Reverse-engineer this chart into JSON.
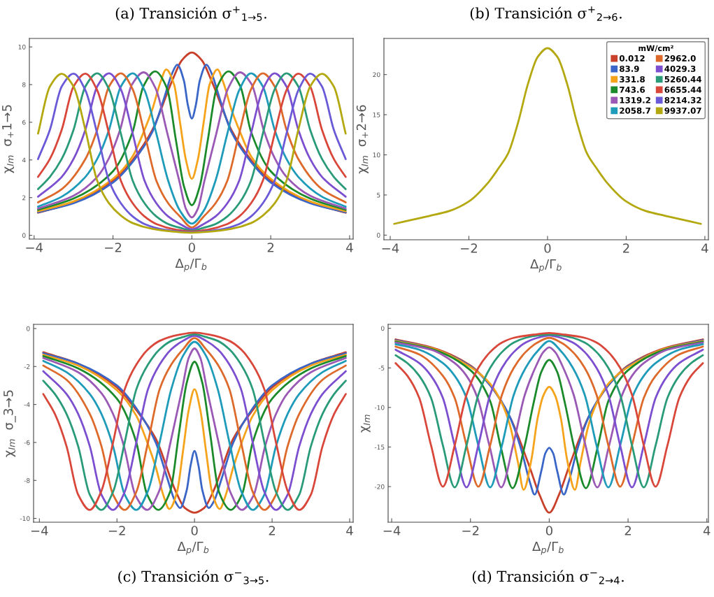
{
  "chart_data": [
    {
      "type": "line",
      "title": "(a) Transición σ$^{+}$$_{1→5}$.",
      "xlabel": "Δ$_{p}$/Γ$_{b}$",
      "ylabel": "χ$_{Im}$  σ$_{+}$1→5",
      "xlim": [
        -4.12,
        4.09
      ],
      "ylim": [
        -0.2,
        10.45
      ],
      "xticks": [
        -4,
        -2,
        0,
        2,
        4
      ],
      "yticks": [
        0,
        2,
        4,
        6,
        8,
        10
      ],
      "series": [
        {
          "color": "#c8402a",
          "x": [
            -3.9,
            -3,
            -2,
            -1.5,
            -1,
            -0.5,
            -0.25,
            0,
            0.25,
            0.5,
            1,
            1.5,
            2,
            3,
            3.9
          ],
          "values": [
            1.2,
            1.75,
            2.9,
            4.0,
            5.6,
            8.2,
            9.3,
            9.7,
            9.3,
            8.2,
            5.6,
            4.0,
            2.9,
            1.75,
            1.2
          ]
        },
        {
          "color": "#3a66c8",
          "x": [
            -3.9,
            -3,
            -2,
            -1.5,
            -1,
            -0.7,
            -0.5,
            -0.37,
            -0.2,
            -0.1,
            0,
            0.1,
            0.2,
            0.37,
            0.5,
            0.7,
            1,
            1.5,
            2,
            3,
            3.9
          ],
          "values": [
            1.22,
            1.7,
            2.8,
            3.9,
            5.5,
            7.3,
            8.6,
            9.05,
            8.2,
            6.9,
            6.2,
            6.9,
            8.2,
            9.05,
            8.6,
            7.3,
            5.5,
            3.9,
            2.8,
            1.7,
            1.22
          ]
        },
        {
          "color": "#f5a31a",
          "x": [
            -3.9,
            -3,
            -2,
            -1.5,
            -1.2,
            -1,
            -0.8,
            -0.65,
            -0.45,
            -0.3,
            -0.15,
            0,
            0.15,
            0.3,
            0.45,
            0.65,
            0.8,
            1,
            1.2,
            1.5,
            2,
            3,
            3.9
          ],
          "values": [
            1.28,
            1.8,
            3.0,
            4.2,
            5.6,
            6.7,
            8.1,
            8.8,
            8.0,
            6.0,
            4.0,
            3.0,
            4.0,
            6.0,
            8.0,
            8.8,
            8.1,
            6.7,
            5.6,
            4.2,
            3.0,
            1.8,
            1.28
          ]
        },
        {
          "color": "#1a8a2a",
          "x": [
            -3.9,
            -3,
            -2,
            -1.5,
            -1.23,
            -0.93,
            -0.63,
            -0.4,
            -0.2,
            0,
            0.2,
            0.4,
            0.63,
            0.93,
            1.23,
            1.5,
            2,
            3,
            3.9
          ],
          "values": [
            1.35,
            1.95,
            3.4,
            5.5,
            7.9,
            8.7,
            7.8,
            5.0,
            2.6,
            1.6,
            2.6,
            5.0,
            7.8,
            8.7,
            7.9,
            5.5,
            3.4,
            1.95,
            1.35
          ]
        },
        {
          "color": "#9b59b6",
          "x": [
            -3.9,
            -3,
            -2.4,
            -2.1,
            -1.82,
            -1.52,
            -1.22,
            -0.92,
            -0.62,
            -0.32,
            -0.15,
            0,
            0.15,
            0.32,
            0.62,
            0.92,
            1.22,
            1.52,
            1.82,
            2.1,
            2.4,
            3,
            3.9
          ],
          "values": [
            1.42,
            2.1,
            3.1,
            4.1,
            5.6,
            8.0,
            8.65,
            7.8,
            5.4,
            2.9,
            1.4,
            0.95,
            1.4,
            2.9,
            5.4,
            7.8,
            8.65,
            8.0,
            5.6,
            4.1,
            3.1,
            2.1,
            1.42
          ]
        },
        {
          "color": "#1f9bba",
          "x": [
            -3.9,
            -3.3,
            -2.7,
            -2.4,
            -2.1,
            -1.8,
            -1.5,
            -1.2,
            -0.9,
            -0.6,
            -0.3,
            0,
            0.3,
            0.6,
            0.9,
            1.2,
            1.5,
            1.8,
            2.1,
            2.4,
            2.7,
            3.3,
            3.9
          ],
          "values": [
            1.52,
            2.05,
            3.1,
            4.05,
            5.6,
            7.9,
            8.6,
            7.7,
            5.4,
            2.9,
            1.3,
            0.62,
            1.3,
            2.9,
            5.4,
            7.7,
            8.6,
            7.9,
            5.6,
            4.05,
            3.1,
            2.05,
            1.52
          ]
        },
        {
          "color": "#dd6a2a",
          "x": [
            -3.9,
            -3.3,
            -2.7,
            -2.4,
            -2.1,
            -1.8,
            -1.5,
            -1.2,
            -0.9,
            -0.6,
            -0.3,
            0,
            0.3,
            0.6,
            0.9,
            1.2,
            1.5,
            1.8,
            2.1,
            2.4,
            2.7,
            3.3,
            3.9
          ],
          "values": [
            1.75,
            2.45,
            4.05,
            5.6,
            7.9,
            8.6,
            7.75,
            5.4,
            2.9,
            1.7,
            1.0,
            0.42,
            1.0,
            1.7,
            2.9,
            5.4,
            7.75,
            8.6,
            7.9,
            5.6,
            4.05,
            2.45,
            1.75
          ]
        },
        {
          "color": "#7b4fcf",
          "x": [
            -3.9,
            -3.3,
            -3,
            -2.7,
            -2.4,
            -2.1,
            -1.8,
            -1.5,
            -1.2,
            -0.9,
            -0.6,
            -0.3,
            0,
            0.3,
            0.6,
            0.9,
            1.2,
            1.5,
            1.8,
            2.1,
            2.4,
            2.7,
            3,
            3.3,
            3.9
          ],
          "values": [
            2.05,
            3.1,
            4.05,
            5.6,
            7.9,
            8.6,
            7.75,
            5.4,
            2.9,
            1.7,
            1.0,
            0.6,
            0.32,
            0.6,
            1.0,
            1.7,
            2.9,
            5.4,
            7.75,
            8.6,
            7.9,
            5.6,
            4.05,
            3.1,
            2.05
          ]
        },
        {
          "color": "#2a9b78",
          "x": [
            -3.9,
            -3.6,
            -3.3,
            -3,
            -2.7,
            -2.4,
            -2.1,
            -1.8,
            -1.5,
            -1.2,
            -0.9,
            -0.6,
            -0.3,
            0,
            0.3,
            0.6,
            0.9,
            1.2,
            1.5,
            1.8,
            2.1,
            2.4,
            2.7,
            3,
            3.3,
            3.6,
            3.9
          ],
          "values": [
            2.45,
            3.1,
            4.05,
            5.6,
            7.9,
            8.6,
            7.75,
            5.4,
            2.9,
            1.7,
            1.0,
            0.6,
            0.4,
            0.25,
            0.4,
            0.6,
            1.0,
            1.7,
            2.9,
            5.4,
            7.75,
            8.6,
            7.9,
            5.6,
            4.05,
            3.1,
            2.45
          ]
        },
        {
          "color": "#d9473b",
          "x": [
            -3.9,
            -3.6,
            -3.3,
            -3,
            -2.7,
            -2.4,
            -2.1,
            -1.8,
            -1.5,
            -1.2,
            -0.9,
            -0.4,
            0,
            0.4,
            0.9,
            1.2,
            1.5,
            1.8,
            2.1,
            2.4,
            2.7,
            3,
            3.3,
            3.6,
            3.9
          ],
          "values": [
            3.1,
            4.05,
            5.6,
            7.9,
            8.58,
            7.7,
            5.4,
            2.9,
            1.7,
            1.0,
            0.6,
            0.3,
            0.2,
            0.3,
            0.6,
            1.0,
            1.7,
            2.9,
            5.4,
            7.7,
            8.58,
            7.9,
            5.6,
            4.05,
            3.1
          ]
        },
        {
          "color": "#6a5ad8",
          "x": [
            -3.9,
            -3.6,
            -3.3,
            -3,
            -2.7,
            -2.4,
            -2.1,
            -1.8,
            -1.5,
            -1.2,
            -0.7,
            0,
            0.7,
            1.2,
            1.5,
            1.8,
            2.1,
            2.4,
            2.7,
            3,
            3.3,
            3.6,
            3.9
          ],
          "values": [
            4.05,
            5.6,
            7.9,
            8.58,
            7.7,
            5.4,
            2.9,
            1.7,
            1.0,
            0.6,
            0.3,
            0.17,
            0.3,
            0.6,
            1.0,
            1.7,
            2.9,
            5.4,
            7.7,
            8.58,
            7.9,
            5.6,
            4.05
          ]
        },
        {
          "color": "#b3a810",
          "x": [
            -3.9,
            -3.6,
            -3.3,
            -3,
            -2.7,
            -2.4,
            -2.1,
            -1.8,
            -1.5,
            -1,
            -0.5,
            0,
            0.5,
            1,
            1.5,
            1.8,
            2.1,
            2.4,
            2.7,
            3,
            3.3,
            3.6,
            3.9
          ],
          "values": [
            5.4,
            7.9,
            8.57,
            7.9,
            5.6,
            2.9,
            1.7,
            1.05,
            0.65,
            0.34,
            0.2,
            0.14,
            0.2,
            0.34,
            0.65,
            1.05,
            1.7,
            2.9,
            5.6,
            7.9,
            8.57,
            7.9,
            5.4
          ]
        }
      ]
    },
    {
      "type": "line",
      "title": "(b) Transición σ$^{+}$$_{2→6}$.",
      "xlabel": "Δ$_{p}$/Γ$_{b}$",
      "ylabel": "χ$_{Im}$  σ$_{+}$2→6",
      "xlim": [
        -4.16,
        4.09
      ],
      "ylim": [
        -0.58,
        24.5
      ],
      "xticks": [
        -4,
        -2,
        0,
        2,
        4
      ],
      "yticks": [
        0,
        5,
        10,
        15,
        20
      ],
      "legend": "top right",
      "legend_title": "mW/cm²",
      "series": [
        {
          "name": "0.012",
          "color": "#c8402a"
        },
        {
          "name": "83.9",
          "color": "#3a66c8"
        },
        {
          "name": "331.8",
          "color": "#f5a31a"
        },
        {
          "name": "743.6",
          "color": "#1a8a2a"
        },
        {
          "name": "1319.2",
          "color": "#9b59b6"
        },
        {
          "name": "2058.7",
          "color": "#1f9bba"
        },
        {
          "name": "2962.0",
          "color": "#dd6a2a"
        },
        {
          "name": "4029.3",
          "color": "#7b4fcf"
        },
        {
          "name": "5260.44",
          "color": "#2a9b78"
        },
        {
          "name": "6655.44",
          "color": "#d9473b"
        },
        {
          "name": "8214.32",
          "color": "#6a5ad8"
        },
        {
          "name": "9937.07",
          "color": "#b3a810",
          "x": [
            -3.9,
            -3,
            -2.5,
            -2,
            -1.5,
            -1.25,
            -1,
            -0.75,
            -0.5,
            -0.25,
            0,
            0.25,
            0.5,
            0.75,
            1,
            1.25,
            1.5,
            2,
            2.5,
            3,
            3.9
          ],
          "values": [
            1.4,
            2.4,
            3.0,
            4.2,
            6.6,
            8.3,
            10.2,
            14,
            18.8,
            22.2,
            23.3,
            22.2,
            18.8,
            14,
            10.2,
            8.3,
            6.6,
            4.2,
            3.0,
            2.4,
            1.4
          ]
        }
      ]
    },
    {
      "type": "line",
      "title": "(c) Transición σ$^{−}$$_{3→5}$.",
      "xlabel": "Δ$_{p}$/Γ$_{b}$",
      "ylabel": "χ$_{Im}$  σ_3→5",
      "xlim": [
        -4.15,
        4.09
      ],
      "ylim": [
        -10.2,
        0.22
      ],
      "xticks": [
        -4,
        -2,
        0,
        2,
        4
      ],
      "yticks": [
        0,
        -2,
        -4,
        -6,
        -8,
        -10
      ],
      "series": [
        {
          "color": "#c8402a",
          "x": [
            -3.9,
            -3,
            -2,
            -1.5,
            -1,
            -0.5,
            -0.25,
            0,
            0.25,
            0.5,
            1,
            1.5,
            2,
            3,
            3.9
          ],
          "values": [
            -1.25,
            -1.85,
            -3.1,
            -4.3,
            -5.8,
            -8.5,
            -9.45,
            -9.7,
            -9.45,
            -8.5,
            -5.8,
            -4.3,
            -3.1,
            -1.85,
            -1.25
          ]
        },
        {
          "color": "#3a66c8",
          "x": [
            -3.9,
            -3,
            -2,
            -1.5,
            -1,
            -0.7,
            -0.5,
            -0.37,
            -0.2,
            -0.1,
            0,
            0.1,
            0.2,
            0.37,
            0.5,
            0.7,
            1,
            1.5,
            2,
            3,
            3.9
          ],
          "values": [
            -1.3,
            -1.85,
            -3.0,
            -4.2,
            -6.0,
            -7.9,
            -9.1,
            -9.45,
            -8.5,
            -7.2,
            -6.45,
            -7.2,
            -8.5,
            -9.45,
            -9.1,
            -7.9,
            -6.0,
            -4.2,
            -3.0,
            -1.85,
            -1.3
          ]
        },
        {
          "color": "#f5a31a",
          "x": [
            -3.9,
            -3,
            -2,
            -1.5,
            -1.2,
            -1,
            -0.8,
            -0.65,
            -0.45,
            -0.3,
            -0.15,
            0,
            0.15,
            0.3,
            0.45,
            0.65,
            0.8,
            1,
            1.2,
            1.5,
            2,
            3,
            3.9
          ],
          "values": [
            -1.38,
            -1.95,
            -3.25,
            -4.6,
            -6.1,
            -7.3,
            -8.8,
            -9.5,
            -8.6,
            -6.5,
            -4.3,
            -3.2,
            -4.3,
            -6.5,
            -8.6,
            -9.5,
            -8.8,
            -7.3,
            -6.1,
            -4.6,
            -3.25,
            -1.95,
            -1.38
          ]
        },
        {
          "color": "#1a8a2a",
          "x": [
            -3.9,
            -3,
            -2,
            -1.5,
            -1.23,
            -0.93,
            -0.63,
            -0.4,
            -0.2,
            0,
            0.2,
            0.4,
            0.63,
            0.93,
            1.23,
            1.5,
            2,
            3,
            3.9
          ],
          "values": [
            -1.45,
            -2.1,
            -3.7,
            -6.0,
            -8.7,
            -9.55,
            -8.6,
            -5.5,
            -2.85,
            -1.75,
            -2.85,
            -5.5,
            -8.6,
            -9.55,
            -8.7,
            -6.0,
            -3.7,
            -2.1,
            -1.45
          ]
        },
        {
          "color": "#9b59b6",
          "x": [
            -3.9,
            -3,
            -2.4,
            -2.1,
            -1.82,
            -1.52,
            -1.22,
            -0.92,
            -0.62,
            -0.32,
            -0.15,
            0,
            0.15,
            0.32,
            0.62,
            0.92,
            1.22,
            1.52,
            1.82,
            2.1,
            2.4,
            3,
            3.9
          ],
          "values": [
            -1.55,
            -2.3,
            -3.4,
            -4.5,
            -6.2,
            -8.8,
            -9.55,
            -8.6,
            -6.0,
            -3.2,
            -1.55,
            -1.05,
            -1.55,
            -3.2,
            -6.0,
            -8.6,
            -9.55,
            -8.8,
            -6.2,
            -4.5,
            -3.4,
            -2.3,
            -1.55
          ]
        },
        {
          "color": "#1f9bba",
          "x": [
            -3.9,
            -3.3,
            -2.7,
            -2.4,
            -2.1,
            -1.8,
            -1.5,
            -1.2,
            -0.9,
            -0.6,
            -0.3,
            0,
            0.3,
            0.6,
            0.9,
            1.2,
            1.5,
            1.8,
            2.1,
            2.4,
            2.7,
            3.3,
            3.9
          ],
          "values": [
            -1.7,
            -2.3,
            -3.45,
            -4.5,
            -6.2,
            -8.75,
            -9.55,
            -8.55,
            -6.0,
            -3.2,
            -1.45,
            -0.7,
            -1.45,
            -3.2,
            -6.0,
            -8.55,
            -9.55,
            -8.75,
            -6.2,
            -4.5,
            -3.45,
            -2.3,
            -1.7
          ]
        },
        {
          "color": "#dd6a2a",
          "x": [
            -3.9,
            -3.3,
            -2.7,
            -2.4,
            -2.1,
            -1.8,
            -1.5,
            -1.2,
            -0.9,
            -0.6,
            -0.3,
            0,
            0.3,
            0.6,
            0.9,
            1.2,
            1.5,
            1.8,
            2.1,
            2.4,
            2.7,
            3.3,
            3.9
          ],
          "values": [
            -1.95,
            -2.7,
            -4.5,
            -6.2,
            -8.75,
            -9.55,
            -8.6,
            -6.0,
            -3.2,
            -1.9,
            -1.1,
            -0.5,
            -1.1,
            -1.9,
            -3.2,
            -6.0,
            -8.6,
            -9.55,
            -8.75,
            -6.2,
            -4.5,
            -2.7,
            -1.95
          ]
        },
        {
          "color": "#7b4fcf",
          "x": [
            -3.9,
            -3.3,
            -3,
            -2.7,
            -2.4,
            -2.1,
            -1.8,
            -1.5,
            -1.2,
            -0.9,
            -0.6,
            -0.3,
            0,
            0.3,
            0.6,
            0.9,
            1.2,
            1.5,
            1.8,
            2.1,
            2.4,
            2.7,
            3,
            3.3,
            3.9
          ],
          "values": [
            -2.25,
            -3.45,
            -4.5,
            -6.2,
            -8.75,
            -9.55,
            -8.6,
            -6.0,
            -3.2,
            -1.9,
            -1.1,
            -0.65,
            -0.38,
            -0.65,
            -1.1,
            -1.9,
            -3.2,
            -6.0,
            -8.6,
            -9.55,
            -8.75,
            -6.2,
            -4.5,
            -3.45,
            -2.25
          ]
        },
        {
          "color": "#2a9b78",
          "x": [
            -3.9,
            -3.6,
            -3.3,
            -3,
            -2.7,
            -2.4,
            -2.1,
            -1.8,
            -1.5,
            -1.2,
            -0.9,
            -0.6,
            -0.3,
            0,
            0.3,
            0.6,
            0.9,
            1.2,
            1.5,
            1.8,
            2.1,
            2.4,
            2.7,
            3,
            3.3,
            3.6,
            3.9
          ],
          "values": [
            -2.75,
            -3.45,
            -4.5,
            -6.2,
            -8.75,
            -9.55,
            -8.6,
            -6.0,
            -3.2,
            -1.9,
            -1.1,
            -0.65,
            -0.45,
            -0.3,
            -0.45,
            -0.65,
            -1.1,
            -1.9,
            -3.2,
            -6.0,
            -8.6,
            -9.55,
            -8.75,
            -6.2,
            -4.5,
            -3.45,
            -2.75
          ]
        },
        {
          "color": "#d9473b",
          "x": [
            -3.9,
            -3.6,
            -3.3,
            -3,
            -2.7,
            -2.4,
            -2.1,
            -1.8,
            -1.5,
            -1.2,
            -0.9,
            -0.4,
            0,
            0.4,
            0.9,
            1.2,
            1.5,
            1.8,
            2.1,
            2.4,
            2.7,
            3,
            3.3,
            3.6,
            3.9
          ],
          "values": [
            -3.45,
            -4.5,
            -6.2,
            -8.75,
            -9.55,
            -8.55,
            -6.0,
            -3.2,
            -1.9,
            -1.1,
            -0.65,
            -0.33,
            -0.22,
            -0.33,
            -0.65,
            -1.1,
            -1.9,
            -3.2,
            -6.0,
            -8.55,
            -9.55,
            -8.75,
            -6.2,
            -4.5,
            -3.45
          ]
        }
      ]
    },
    {
      "type": "line",
      "title": "(d) Transición σ$^{−}$$_{2→4}$.",
      "xlabel": "Δ$_{p}$/Γ$_{b}$",
      "ylabel": "χ$_{Im}$",
      "xlim": [
        -4.09,
        4.04
      ],
      "ylim": [
        -24.5,
        0.5
      ],
      "xticks": [
        -4,
        -2,
        0,
        2,
        4
      ],
      "yticks": [
        0,
        -5,
        -10,
        -15,
        -20
      ],
      "series": [
        {
          "color": "#c8402a",
          "x": [
            -3.9,
            -3,
            -2,
            -1.5,
            -1,
            -0.5,
            -0.25,
            0,
            0.25,
            0.5,
            1,
            1.5,
            2,
            3,
            3.9
          ],
          "values": [
            -1.4,
            -2.4,
            -4.7,
            -7.2,
            -11.2,
            -17.5,
            -21,
            -23.3,
            -21,
            -17.5,
            -11.2,
            -7.2,
            -4.7,
            -2.4,
            -1.4
          ]
        },
        {
          "color": "#3a66c8",
          "x": [
            -3.9,
            -3,
            -2,
            -1.5,
            -1,
            -0.7,
            -0.5,
            -0.37,
            -0.2,
            -0.1,
            0,
            0.1,
            0.2,
            0.37,
            0.5,
            0.7,
            1,
            1.5,
            2,
            3,
            3.9
          ],
          "values": [
            -1.5,
            -2.5,
            -4.8,
            -7.2,
            -11.2,
            -15.5,
            -19.3,
            -21,
            -18,
            -15.8,
            -15.1,
            -15.8,
            -18,
            -21,
            -19.3,
            -15.5,
            -11.2,
            -7.2,
            -4.8,
            -2.5,
            -1.5
          ]
        },
        {
          "color": "#f5a31a",
          "x": [
            -3.9,
            -3,
            -2,
            -1.5,
            -1.2,
            -1,
            -0.8,
            -0.65,
            -0.45,
            -0.3,
            -0.15,
            0,
            0.15,
            0.3,
            0.45,
            0.65,
            0.8,
            1,
            1.2,
            1.5,
            2,
            3,
            3.9
          ],
          "values": [
            -1.6,
            -2.5,
            -4.9,
            -7.0,
            -9.5,
            -12.2,
            -16.8,
            -20.4,
            -16.5,
            -11.5,
            -8.5,
            -7.4,
            -8.5,
            -11.5,
            -16.5,
            -20.4,
            -16.8,
            -12.2,
            -9.5,
            -7.0,
            -4.9,
            -2.5,
            -1.6
          ]
        },
        {
          "color": "#1a8a2a",
          "x": [
            -3.9,
            -3,
            -2,
            -1.5,
            -1.23,
            -0.93,
            -0.63,
            -0.4,
            -0.2,
            0,
            0.2,
            0.4,
            0.63,
            0.93,
            1.23,
            1.5,
            2,
            3,
            3.9
          ],
          "values": [
            -1.7,
            -2.6,
            -5.3,
            -9.2,
            -15,
            -20.2,
            -15,
            -9.5,
            -5.5,
            -4.0,
            -5.5,
            -9.5,
            -15,
            -20.2,
            -15,
            -9.2,
            -5.3,
            -2.6,
            -1.7
          ]
        },
        {
          "color": "#9b59b6",
          "x": [
            -3.9,
            -3,
            -2.4,
            -2.1,
            -1.82,
            -1.52,
            -1.22,
            -0.92,
            -0.62,
            -0.32,
            -0.15,
            0,
            0.15,
            0.32,
            0.62,
            0.92,
            1.22,
            1.52,
            1.82,
            2.1,
            2.4,
            3,
            3.9
          ],
          "values": [
            -1.8,
            -2.7,
            -4.4,
            -6.0,
            -8.8,
            -14.8,
            -20.1,
            -14.8,
            -8.4,
            -4.6,
            -3.0,
            -2.4,
            -3.0,
            -4.6,
            -8.4,
            -14.8,
            -20.1,
            -14.8,
            -8.8,
            -6.0,
            -4.4,
            -2.7,
            -1.8
          ]
        },
        {
          "color": "#1f9bba",
          "x": [
            -3.9,
            -3.3,
            -2.7,
            -2.4,
            -2.1,
            -1.8,
            -1.5,
            -1.2,
            -0.9,
            -0.6,
            -0.3,
            0,
            0.3,
            0.6,
            0.9,
            1.2,
            1.5,
            1.8,
            2.1,
            2.4,
            2.7,
            3.3,
            3.9
          ],
          "values": [
            -2.0,
            -2.7,
            -4.4,
            -6.0,
            -8.8,
            -14.8,
            -20.1,
            -14.8,
            -8.4,
            -5.0,
            -2.9,
            -1.6,
            -2.9,
            -5.0,
            -8.4,
            -14.8,
            -20.1,
            -14.8,
            -8.8,
            -6.0,
            -4.4,
            -2.7,
            -2.0
          ]
        },
        {
          "color": "#dd6a2a",
          "x": [
            -3.9,
            -3.3,
            -2.7,
            -2.4,
            -2.1,
            -1.8,
            -1.5,
            -1.2,
            -0.9,
            -0.6,
            -0.3,
            0,
            0.3,
            0.6,
            0.9,
            1.2,
            1.5,
            1.8,
            2.1,
            2.4,
            2.7,
            3.3,
            3.9
          ],
          "values": [
            -2.3,
            -3.3,
            -6.0,
            -8.8,
            -14.8,
            -20,
            -14.8,
            -8.4,
            -5.0,
            -3.0,
            -1.8,
            -1.2,
            -1.8,
            -3.0,
            -5.0,
            -8.4,
            -14.8,
            -20,
            -14.8,
            -8.8,
            -6.0,
            -3.3,
            -2.3
          ]
        },
        {
          "color": "#7b4fcf",
          "x": [
            -3.9,
            -3.3,
            -3,
            -2.7,
            -2.4,
            -2.1,
            -1.8,
            -1.5,
            -1.2,
            -0.9,
            -0.6,
            -0.3,
            0,
            0.3,
            0.6,
            0.9,
            1.2,
            1.5,
            1.8,
            2.1,
            2.4,
            2.7,
            3,
            3.3,
            3.9
          ],
          "values": [
            -2.7,
            -4.4,
            -6.0,
            -8.8,
            -14.8,
            -20.1,
            -14.8,
            -8.4,
            -5.0,
            -3.0,
            -1.8,
            -1.2,
            -0.9,
            -1.2,
            -1.8,
            -3.0,
            -5.0,
            -8.4,
            -14.8,
            -20.1,
            -14.8,
            -8.8,
            -6.0,
            -4.4,
            -2.7
          ]
        },
        {
          "color": "#2a9b78",
          "x": [
            -3.9,
            -3.6,
            -3.3,
            -3,
            -2.7,
            -2.4,
            -2.1,
            -1.8,
            -1.5,
            -1.2,
            -0.9,
            -0.6,
            -0.3,
            0,
            0.3,
            0.6,
            0.9,
            1.2,
            1.5,
            1.8,
            2.1,
            2.4,
            2.7,
            3,
            3.3,
            3.6,
            3.9
          ],
          "values": [
            -3.4,
            -4.4,
            -6.0,
            -8.8,
            -14.8,
            -20.1,
            -14.8,
            -8.4,
            -5.0,
            -3.0,
            -1.8,
            -1.2,
            -0.9,
            -0.8,
            -0.9,
            -1.2,
            -1.8,
            -3.0,
            -5.0,
            -8.4,
            -14.8,
            -20.1,
            -14.8,
            -8.8,
            -6.0,
            -4.4,
            -3.4
          ]
        },
        {
          "color": "#d9473b",
          "x": [
            -3.9,
            -3.6,
            -3.3,
            -3,
            -2.7,
            -2.4,
            -2.1,
            -1.8,
            -1.5,
            -1.2,
            -0.9,
            -0.4,
            0,
            0.4,
            0.9,
            1.2,
            1.5,
            1.8,
            2.1,
            2.4,
            2.7,
            3,
            3.3,
            3.6,
            3.9
          ],
          "values": [
            -4.4,
            -6.0,
            -8.8,
            -14.8,
            -20,
            -14.8,
            -8.4,
            -5.0,
            -3.0,
            -1.8,
            -1.2,
            -0.8,
            -0.6,
            -0.8,
            -1.2,
            -1.8,
            -3.0,
            -5.0,
            -8.4,
            -14.8,
            -20,
            -14.8,
            -8.8,
            -6.0,
            -4.4
          ]
        }
      ]
    }
  ]
}
